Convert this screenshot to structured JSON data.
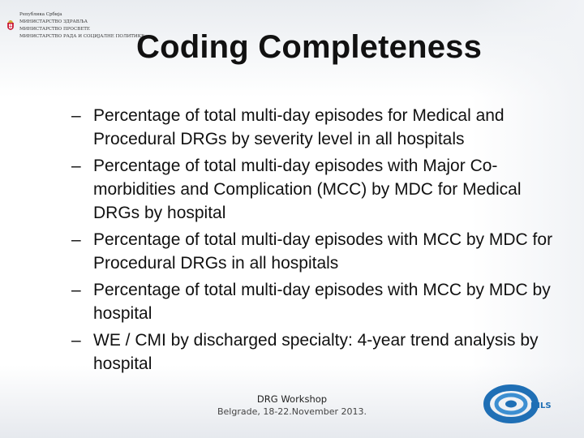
{
  "header": {
    "ministries": [
      "Република Србија",
      "МИНИСТАРСТВО ЗДРАВЉА",
      "МИНИСТАРСТВО ПРОСВЕТЕ",
      "МИНИСТАРСТВО РАДА И СОЦИЈАЛНЕ ПОЛИТИКЕ"
    ]
  },
  "slide": {
    "title": "Coding Completeness",
    "dash": "–",
    "bullets": [
      "Percentage of total multi-day episodes for Medical and Procedural DRGs by severity level in all hospitals",
      "Percentage of total multi-day episodes with Major Co-morbidities and Complication (MCC) by MDC for Medical DRGs by hospital",
      "Percentage of total multi-day episodes with MCC by MDC for Procedural DRGs in all hospitals",
      "Percentage of total multi-day episodes with MCC by MDC by hospital",
      "WE / CMI by discharged specialty: 4-year trend analysis by hospital"
    ]
  },
  "footer": {
    "line1": "DRG Workshop",
    "line2": "Belgrade, 18-22.November 2013."
  },
  "logo": {
    "text": "DILS",
    "color": "#1f6fb5"
  }
}
